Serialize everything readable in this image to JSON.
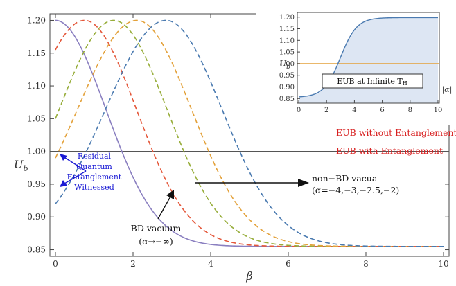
{
  "chart_data": [
    {
      "type": "line",
      "xlabel": "β",
      "ylabel": "U_b",
      "xlim": [
        0,
        10
      ],
      "ylim": [
        0.84,
        1.21
      ],
      "xticks": [
        "0",
        "2",
        "4",
        "6",
        "8",
        "10"
      ],
      "yticks": [
        "0.85",
        "0.90",
        "0.95",
        "1.00",
        "1.05",
        "1.10",
        "1.15",
        "1.20"
      ],
      "grid": false,
      "series": [
        {
          "color": "#8a7fc0",
          "style": "solid",
          "peak_x": 0.0,
          "start_y": 1.2
        },
        {
          "color": "#e4573a",
          "style": "dashed",
          "peak_x": 0.75,
          "start_y": 1.155
        },
        {
          "color": "#97ad3a",
          "style": "dashed",
          "peak_x": 1.5,
          "start_y": 1.05
        },
        {
          "color": "#e3a13a",
          "style": "dashed",
          "peak_x": 2.1,
          "start_y": 0.99
        },
        {
          "color": "#4a7ab0",
          "style": "dashed",
          "peak_x": 2.85,
          "start_y": 0.92
        }
      ],
      "reference_line": {
        "y": 1.0,
        "color": "#555555"
      },
      "annotations": {
        "without": "EUB without Entanglement",
        "with": "EUB with Entanglement",
        "residual": [
          "Residual",
          "Quantum",
          "Entanglement",
          "Witnessed"
        ],
        "nonbd": [
          "non−BD vacua",
          "(α=−4,−3,−2.5,−2)"
        ],
        "bd": [
          "BD vacuum",
          "(α→−∞)"
        ]
      }
    },
    {
      "type": "area",
      "xlabel": "|α|",
      "ylabel": "U_b",
      "xlim": [
        0,
        10
      ],
      "ylim": [
        0.83,
        1.22
      ],
      "xticks": [
        "0",
        "2",
        "4",
        "6",
        "8",
        "10"
      ],
      "yticks": [
        "0.85",
        "0.90",
        "0.95",
        "1.00",
        "1.05",
        "1.10",
        "1.15",
        "1.20"
      ],
      "curve": {
        "low": 0.855,
        "high": 1.198,
        "midpoint": 3.0,
        "color": "#4a7ab0",
        "fill": "#dde6f3"
      },
      "reference_line": {
        "y": 1.0,
        "color": "#e3a13a"
      },
      "legend": "EUB at Infinite T_H"
    }
  ]
}
